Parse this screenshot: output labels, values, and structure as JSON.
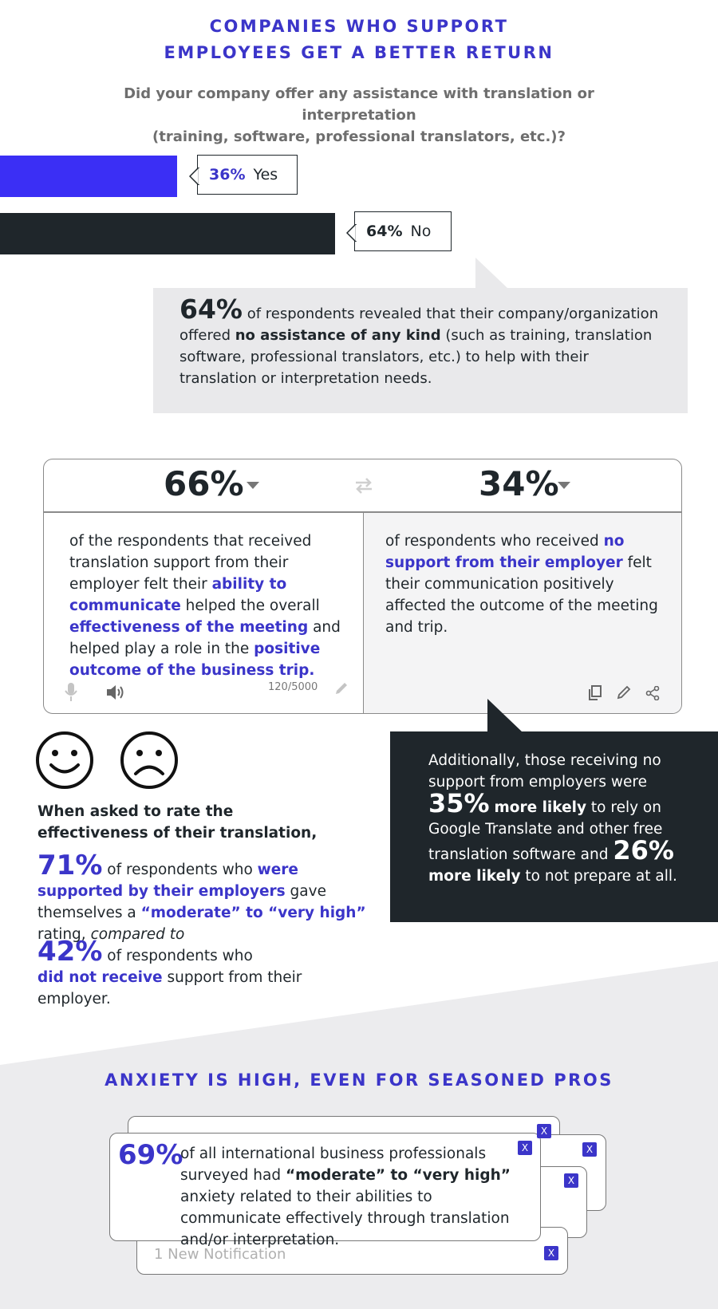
{
  "header": {
    "title_line1": "COMPANIES WHO SUPPORT",
    "title_line2": "EMPLOYEES GET A BETTER RETURN",
    "question_line1": "Did your company offer any assistance with translation or interpretation",
    "question_line2": "(training, software, professional translators, etc.)?"
  },
  "colors": {
    "brand_purple": "#3b35c9",
    "bar_yes": "#3b2ff5",
    "bar_no": "#1f262b",
    "panel_grey": "#e9e9eb"
  },
  "chart_data": {
    "type": "bar",
    "categories": [
      "Yes",
      "No"
    ],
    "values": [
      36,
      64
    ],
    "value_labels": [
      "36%",
      "64%"
    ]
  },
  "callout": {
    "pct": "64%",
    "text_a": " of respondents revealed that their company/organization offered ",
    "text_bold": "no assistance of any kind",
    "text_b": " (such as training, translation software, professional translators, etc.) to help with their translation or interpretation needs."
  },
  "translator": {
    "left_pct": "66%",
    "right_pct": "34%",
    "left_parts": {
      "a": "of the respondents that received translation support from their employer felt their ",
      "b": "ability to communicate",
      "c": " helped the overall ",
      "d": "effectiveness of the meeting",
      "e": " and helped play a role in the ",
      "f": "positive outcome of the business trip."
    },
    "right_parts": {
      "a": "of respondents who received ",
      "b": "no support from their employer",
      "c": " felt their communication positively affected the outcome of the meeting and trip."
    },
    "char_count": "120/5000",
    "icons": {
      "mic": "microphone-icon",
      "speaker": "speaker-icon",
      "edit": "pencil-icon",
      "swap": "swap-arrows-icon",
      "copy": "copy-icon",
      "share": "share-icon"
    }
  },
  "dark_callout": {
    "line1": "Additionally, those receiving no support from employers were",
    "pct1": "35%",
    "bold1": "more likely",
    "text2": " to rely on Google Translate and other free translation software and ",
    "pct2": "26%",
    "bold2": "more likely",
    "text3": " to not prepare at all."
  },
  "rating": {
    "intro": "When asked to rate the effectiveness of their translation,",
    "pct1": "71%",
    "t1a": " of respondents who ",
    "t1b": "were supported by their employers",
    "t1c": " gave themselves a ",
    "t1d": "“moderate” to “very high”",
    "t1e": " rating, ",
    "t1f": "compared to",
    "pct2": "42%",
    "t2a": " of respondents who",
    "t2b": "did not receive",
    "t2c": " support from their employer."
  },
  "anxiety": {
    "title": "ANXIETY IS HIGH, EVEN FOR SEASONED PROS",
    "pct": "69%",
    "t_a": "of all international business professionals surveyed had ",
    "t_b": "“moderate” to “very high”",
    "t_c": " anxiety related to their abilities to communicate effectively through translation and/or interpretation.",
    "new_notification": "1 New Notification",
    "close_label": "X"
  }
}
